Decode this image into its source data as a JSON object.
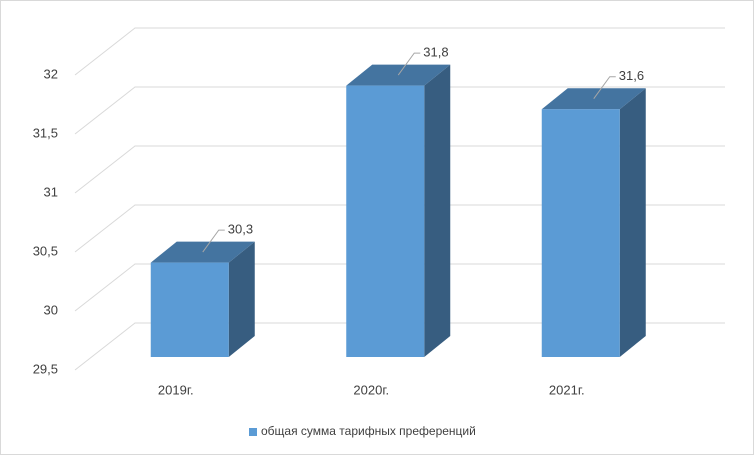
{
  "chart_data": {
    "type": "bar3d",
    "categories": [
      "2019г.",
      "2020г.",
      "2021г."
    ],
    "series": [
      {
        "name": "общая сумма тарифных преференций",
        "color": "#5b9bd5",
        "values": [
          30.3,
          31.8,
          31.6
        ],
        "value_labels": [
          "30,3",
          "31,8",
          "31,6"
        ]
      }
    ],
    "ylim": [
      29.5,
      32
    ],
    "yticks": [
      {
        "value": 29.5,
        "label": "29,5"
      },
      30,
      {
        "value": 30.5,
        "label": "30,5"
      },
      31,
      {
        "value": 31.5,
        "label": "31,5"
      },
      32
    ],
    "grid": true,
    "legend": "bottom"
  }
}
